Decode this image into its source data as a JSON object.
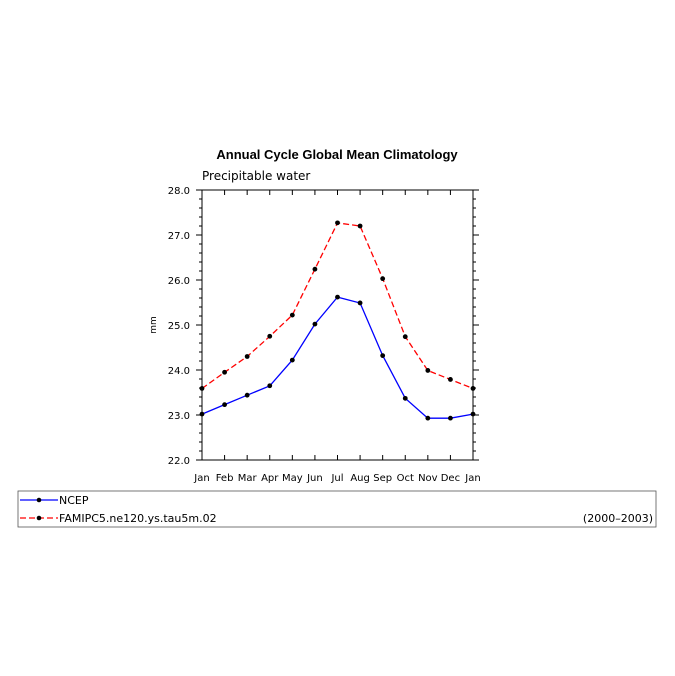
{
  "chart_data": {
    "type": "line",
    "title": "Annual Cycle Global Mean Climatology",
    "subtitle": "Precipitable water",
    "ylabel": "mm",
    "xlabel": "",
    "categories": [
      "Jan",
      "Feb",
      "Mar",
      "Apr",
      "May",
      "Jun",
      "Jul",
      "Aug",
      "Sep",
      "Oct",
      "Nov",
      "Dec",
      "Jan"
    ],
    "ylim": [
      22.0,
      28.0
    ],
    "yticks": [
      "22.0",
      "23.0",
      "24.0",
      "25.0",
      "26.0",
      "27.0",
      "28.0"
    ],
    "grid": false,
    "legend_position": "bottom",
    "series": [
      {
        "name": "NCEP",
        "color": "#0000ff",
        "dash": "solid",
        "values": [
          23.02,
          23.23,
          23.44,
          23.65,
          24.22,
          25.02,
          25.62,
          25.49,
          24.32,
          23.37,
          22.93,
          22.93,
          23.02
        ]
      },
      {
        "name": "FAMIPC5.ne120.ys.tau5m.02",
        "color": "#ff0000",
        "dash": "dashed",
        "values": [
          23.59,
          23.95,
          24.3,
          24.75,
          25.22,
          26.24,
          27.27,
          27.2,
          26.03,
          24.74,
          23.99,
          23.79,
          23.59
        ]
      }
    ],
    "period_label": "(2000–2003)"
  }
}
